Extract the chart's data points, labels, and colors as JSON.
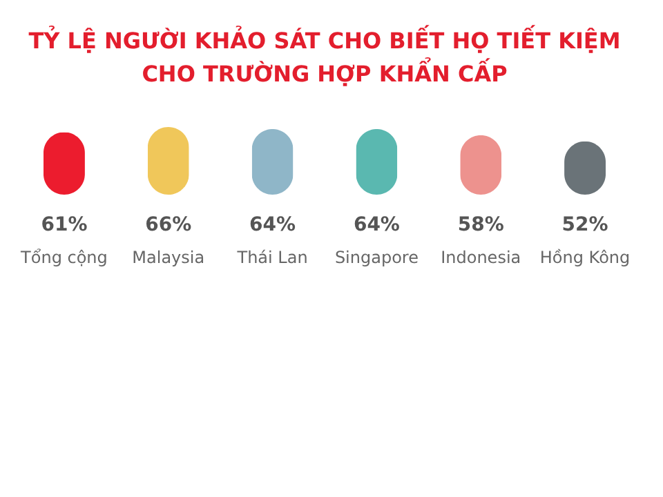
{
  "chart_data": {
    "type": "bar",
    "title": [
      "TỶ LỆ NGƯỜI KHẢO SÁT CHO BIẾT HỌ TIẾT KIỆM",
      "CHO TRƯỜNG HỢP KHẨN CẤP"
    ],
    "categories": [
      "Tổng cộng",
      "Malaysia",
      "Thái Lan",
      "Singapore",
      "Indonesia",
      "Hồng Kông"
    ],
    "values": [
      61,
      66,
      64,
      64,
      58,
      52
    ],
    "value_labels": [
      "61%",
      "66%",
      "64%",
      "64%",
      "58%",
      "52%"
    ],
    "colors": [
      "#ec1c2e",
      "#f0c75a",
      "#8fb6c8",
      "#5ab8b0",
      "#ed928e",
      "#6a7378"
    ]
  }
}
